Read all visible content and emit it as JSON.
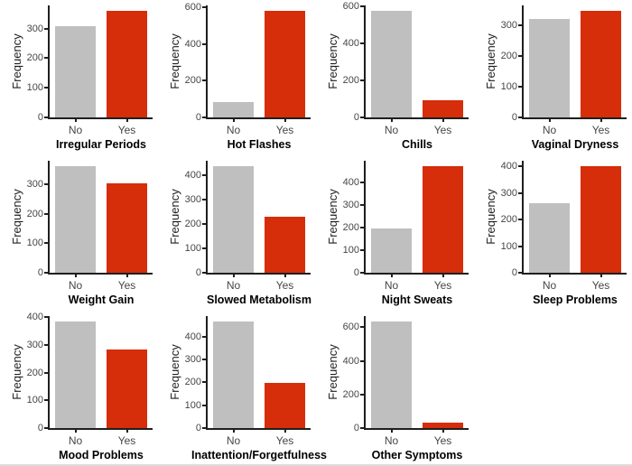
{
  "figure": {
    "ylabel": "Frequency",
    "categories": [
      "No",
      "Yes"
    ],
    "style": {
      "bar_no_color": "#bfbfbf",
      "bar_yes_color": "#d62d0a",
      "axis_line_color": "#1f1f1f",
      "tick_label_color": "#454545",
      "axis_title_color": "#000000"
    }
  },
  "chart_data": [
    {
      "type": "bar",
      "title": "Irregular Periods",
      "ylabel": "Frequency",
      "categories": [
        "No",
        "Yes"
      ],
      "values": [
        307,
        360
      ],
      "yticks": [
        0,
        100,
        200,
        300
      ],
      "ylim": [
        0,
        378
      ]
    },
    {
      "type": "bar",
      "title": "Hot Flashes",
      "ylabel": "Frequency",
      "categories": [
        "No",
        "Yes"
      ],
      "values": [
        85,
        580
      ],
      "yticks": [
        0,
        200,
        400,
        600
      ],
      "ylim": [
        0,
        609
      ]
    },
    {
      "type": "bar",
      "title": "Chills",
      "ylabel": "Frequency",
      "categories": [
        "No",
        "Yes"
      ],
      "values": [
        575,
        95
      ],
      "yticks": [
        0,
        200,
        400,
        600
      ],
      "ylim": [
        0,
        604
      ]
    },
    {
      "type": "bar",
      "title": "Vaginal Dryness",
      "ylabel": "Frequency",
      "categories": [
        "No",
        "Yes"
      ],
      "values": [
        320,
        347
      ],
      "yticks": [
        0,
        100,
        200,
        300
      ],
      "ylim": [
        0,
        364
      ]
    },
    {
      "type": "bar",
      "title": "Weight Gain",
      "ylabel": "Frequency",
      "categories": [
        "No",
        "Yes"
      ],
      "values": [
        362,
        305
      ],
      "yticks": [
        0,
        100,
        200,
        300
      ],
      "ylim": [
        0,
        380
      ]
    },
    {
      "type": "bar",
      "title": "Slowed Metabolism",
      "ylabel": "Frequency",
      "categories": [
        "No",
        "Yes"
      ],
      "values": [
        437,
        228
      ],
      "yticks": [
        0,
        100,
        200,
        300,
        400
      ],
      "ylim": [
        0,
        459
      ]
    },
    {
      "type": "bar",
      "title": "Night Sweats",
      "ylabel": "Frequency",
      "categories": [
        "No",
        "Yes"
      ],
      "values": [
        195,
        470
      ],
      "yticks": [
        0,
        100,
        200,
        300,
        400
      ],
      "ylim": [
        0,
        494
      ]
    },
    {
      "type": "bar",
      "title": "Sleep Problems",
      "ylabel": "Frequency",
      "categories": [
        "No",
        "Yes"
      ],
      "values": [
        263,
        402
      ],
      "yticks": [
        0,
        100,
        200,
        300,
        400
      ],
      "ylim": [
        0,
        422
      ]
    },
    {
      "type": "bar",
      "title": "Mood Problems",
      "ylabel": "Frequency",
      "categories": [
        "No",
        "Yes"
      ],
      "values": [
        385,
        283
      ],
      "yticks": [
        0,
        100,
        200,
        300,
        400
      ],
      "ylim": [
        0,
        404
      ]
    },
    {
      "type": "bar",
      "title": "Inattention/Forgetfulness",
      "ylabel": "Frequency",
      "categories": [
        "No",
        "Yes"
      ],
      "values": [
        468,
        197
      ],
      "yticks": [
        0,
        100,
        200,
        300,
        400
      ],
      "ylim": [
        0,
        491
      ]
    },
    {
      "type": "bar",
      "title": "Other Symptoms",
      "ylabel": "Frequency",
      "categories": [
        "No",
        "Yes"
      ],
      "values": [
        635,
        30
      ],
      "yticks": [
        0,
        200,
        400,
        600
      ],
      "ylim": [
        0,
        667
      ]
    }
  ]
}
